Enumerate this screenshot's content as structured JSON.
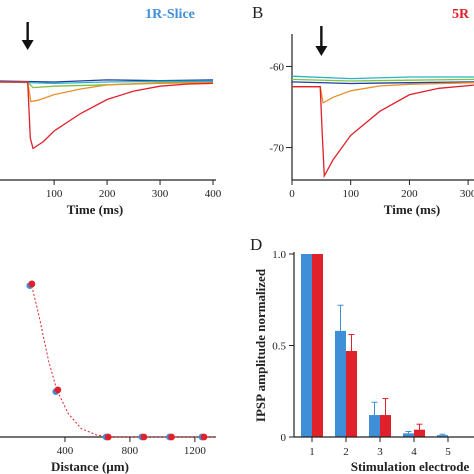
{
  "panels": {
    "B": {
      "label": "B"
    },
    "D": {
      "label": "D"
    }
  },
  "colors": {
    "blue": "#3f8fd8",
    "red": "#e0202a",
    "orange": "#e8902a",
    "green": "#7fc241",
    "teal": "#2bb3c0",
    "dark_blue": "#1f3fa0"
  },
  "chart_data": [
    {
      "id": "A",
      "type": "line",
      "annotation": "1R-Slice",
      "xlabel": "Time (ms)",
      "xlim": [
        -40,
        400
      ],
      "ylim": [
        -76,
        -56
      ],
      "xticks": [
        "100",
        "200",
        "300",
        "400"
      ],
      "arrow_at_x": 50,
      "series": [
        {
          "color": "red",
          "points": [
            [
              -40,
              -62
            ],
            [
              50,
              -62
            ],
            [
              55,
              -70
            ],
            [
              60,
              -71.5
            ],
            [
              80,
              -70.5
            ],
            [
              100,
              -69
            ],
            [
              150,
              -66.5
            ],
            [
              200,
              -64.5
            ],
            [
              250,
              -63.3
            ],
            [
              300,
              -62.6
            ],
            [
              350,
              -62.3
            ],
            [
              400,
              -62.2
            ]
          ]
        },
        {
          "color": "orange",
          "points": [
            [
              -40,
              -62
            ],
            [
              50,
              -62
            ],
            [
              56,
              -64.8
            ],
            [
              70,
              -64.6
            ],
            [
              100,
              -63.8
            ],
            [
              150,
              -63
            ],
            [
              200,
              -62.4
            ],
            [
              300,
              -62.1
            ],
            [
              400,
              -62.1
            ]
          ]
        },
        {
          "color": "green",
          "points": [
            [
              -40,
              -62
            ],
            [
              50,
              -62
            ],
            [
              60,
              -62.8
            ],
            [
              100,
              -62.6
            ],
            [
              200,
              -62.4
            ],
            [
              300,
              -62.2
            ],
            [
              400,
              -62.1
            ]
          ]
        },
        {
          "color": "teal",
          "points": [
            [
              -40,
              -61.9
            ],
            [
              100,
              -62.2
            ],
            [
              200,
              -62
            ],
            [
              300,
              -61.9
            ],
            [
              400,
              -61.9
            ]
          ]
        },
        {
          "color": "dark_blue",
          "points": [
            [
              -40,
              -61.8
            ],
            [
              100,
              -62
            ],
            [
              200,
              -61.7
            ],
            [
              300,
              -61.8
            ],
            [
              400,
              -61.7
            ]
          ]
        }
      ]
    },
    {
      "id": "B",
      "type": "line",
      "annotation": "5R",
      "xlabel": "Time (ms)",
      "xlim": [
        0,
        310
      ],
      "ylim": [
        -74,
        -56
      ],
      "xticks": [
        "0",
        "100",
        "200",
        "300"
      ],
      "yticks": [
        "-60",
        "-70"
      ],
      "arrow_at_x": 50,
      "series": [
        {
          "color": "red",
          "points": [
            [
              0,
              -62.5
            ],
            [
              48,
              -62.5
            ],
            [
              52,
              -69
            ],
            [
              55,
              -73.5
            ],
            [
              70,
              -71.5
            ],
            [
              100,
              -68.5
            ],
            [
              150,
              -65.5
            ],
            [
              200,
              -63.5
            ],
            [
              250,
              -62.7
            ],
            [
              310,
              -62.3
            ]
          ]
        },
        {
          "color": "orange",
          "points": [
            [
              0,
              -62.5
            ],
            [
              48,
              -62.5
            ],
            [
              53,
              -64.5
            ],
            [
              70,
              -63.8
            ],
            [
              100,
              -63
            ],
            [
              150,
              -62.4
            ],
            [
              200,
              -62.2
            ],
            [
              310,
              -62
            ]
          ]
        },
        {
          "color": "green",
          "points": [
            [
              0,
              -61.6
            ],
            [
              100,
              -61.8
            ],
            [
              200,
              -61.7
            ],
            [
              310,
              -61.6
            ]
          ]
        },
        {
          "color": "teal",
          "points": [
            [
              0,
              -61.2
            ],
            [
              100,
              -61.5
            ],
            [
              200,
              -61.3
            ],
            [
              310,
              -61.3
            ]
          ]
        },
        {
          "color": "dark_blue",
          "points": [
            [
              0,
              -61.9
            ],
            [
              100,
              -62.1
            ],
            [
              200,
              -62
            ],
            [
              310,
              -61.9
            ]
          ]
        }
      ]
    },
    {
      "id": "C",
      "type": "scatter",
      "xlabel": "Distance (µm)",
      "xlim": [
        0,
        1330
      ],
      "ylim": [
        0,
        1.1
      ],
      "xticks": [
        "400",
        "800",
        "1200"
      ],
      "series": [
        {
          "color": "blue",
          "points": [
            [
              190,
              0.9
            ],
            [
              350,
              0.27
            ],
            [
              660,
              0.0
            ],
            [
              880,
              0.0
            ],
            [
              1050,
              0.0
            ],
            [
              1250,
              0.0
            ]
          ]
        },
        {
          "color": "red",
          "points": [
            [
              190,
              0.91
            ],
            [
              350,
              0.28
            ],
            [
              660,
              0.0
            ],
            [
              880,
              0.0
            ],
            [
              1050,
              0.0
            ],
            [
              1250,
              0.0
            ]
          ]
        }
      ],
      "fit_curve": {
        "color": "red",
        "points": [
          [
            190,
            0.92
          ],
          [
            240,
            0.72
          ],
          [
            300,
            0.45
          ],
          [
            350,
            0.28
          ],
          [
            420,
            0.14
          ],
          [
            500,
            0.05
          ],
          [
            600,
            0.01
          ],
          [
            700,
            0.0
          ],
          [
            1330,
            0.0
          ]
        ]
      }
    },
    {
      "id": "D",
      "type": "bar",
      "xlabel": "Stimulation electrode",
      "ylabel": "IPSP amplitude normalized",
      "ylim": [
        0,
        1.0
      ],
      "yticks": [
        "0",
        "0.5",
        "1.0"
      ],
      "categories": [
        "1",
        "2",
        "3",
        "4",
        "5"
      ],
      "series": [
        {
          "color": "blue",
          "values": [
            1.0,
            0.58,
            0.12,
            0.02,
            0.01
          ],
          "errors": [
            0.0,
            0.14,
            0.07,
            0.01,
            0.005
          ]
        },
        {
          "color": "red",
          "values": [
            1.0,
            0.47,
            0.12,
            0.04,
            0.0
          ],
          "errors": [
            0.0,
            0.09,
            0.09,
            0.03,
            0.0
          ]
        }
      ]
    }
  ]
}
